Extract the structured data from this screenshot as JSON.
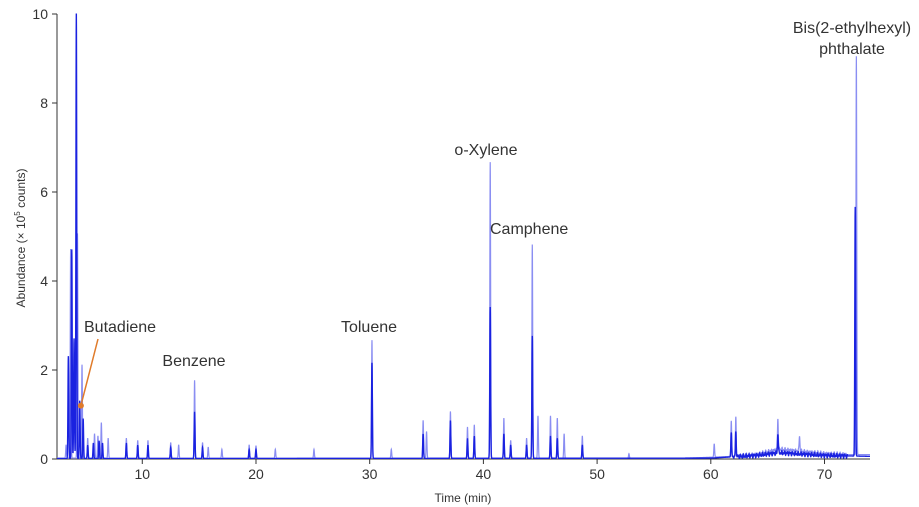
{
  "chart_data": {
    "type": "line",
    "xlabel": "Time (min)",
    "ylabel": "Abundance (× 10",
    "ylabel_sup": "5",
    "ylabel_suffix": " counts)",
    "xlim": [
      2.5,
      74
    ],
    "ylim": [
      0,
      10
    ],
    "x_ticks": [
      10,
      20,
      30,
      40,
      50,
      60,
      70
    ],
    "y_ticks": [
      0,
      2,
      4,
      6,
      8,
      10
    ],
    "grid": false,
    "legend": "none",
    "colors": {
      "dark": "#1a22e0",
      "light": "#8a8ef2",
      "annotation": "#e07b2a",
      "axis": "#333333"
    },
    "series": [
      {
        "color_key": "light",
        "peaks": [
          [
            3.3,
            0.3
          ],
          [
            3.7,
            4.7
          ],
          [
            4.3,
            5.05
          ],
          [
            4.7,
            2.1
          ],
          [
            5.2,
            0.45
          ],
          [
            5.8,
            0.55
          ],
          [
            6.1,
            0.5
          ],
          [
            6.4,
            0.8
          ],
          [
            7.0,
            0.45
          ],
          [
            8.6,
            0.45
          ],
          [
            9.6,
            0.4
          ],
          [
            10.5,
            0.4
          ],
          [
            12.5,
            0.35
          ],
          [
            13.2,
            0.3
          ],
          [
            14.6,
            1.75
          ],
          [
            15.3,
            0.35
          ],
          [
            15.8,
            0.25
          ],
          [
            17.0,
            0.2
          ],
          [
            19.4,
            0.3
          ],
          [
            20.0,
            0.28
          ],
          [
            21.7,
            0.2
          ],
          [
            25.1,
            0.2
          ],
          [
            30.2,
            2.65
          ],
          [
            31.9,
            0.2
          ],
          [
            34.7,
            0.85
          ],
          [
            35.0,
            0.6
          ],
          [
            37.1,
            1.05
          ],
          [
            38.6,
            0.7
          ],
          [
            39.2,
            0.75
          ],
          [
            40.6,
            6.65
          ],
          [
            41.8,
            0.9
          ],
          [
            42.4,
            0.4
          ],
          [
            43.8,
            0.45
          ],
          [
            44.3,
            4.8
          ],
          [
            44.8,
            0.95
          ],
          [
            45.9,
            0.95
          ],
          [
            46.5,
            0.9
          ],
          [
            47.1,
            0.55
          ],
          [
            48.7,
            0.5
          ],
          [
            52.8,
            0.1
          ],
          [
            60.3,
            0.3
          ],
          [
            61.8,
            0.8
          ],
          [
            62.2,
            0.85
          ],
          [
            65.9,
            0.7
          ],
          [
            67.8,
            0.35
          ],
          [
            72.8,
            8.95
          ]
        ],
        "baseline": [
          [
            2.5,
            0.02
          ],
          [
            20,
            0.02
          ],
          [
            58,
            0.02
          ],
          [
            62,
            0.06
          ],
          [
            64,
            0.1
          ],
          [
            66,
            0.22
          ],
          [
            68,
            0.17
          ],
          [
            70,
            0.12
          ],
          [
            72,
            0.1
          ],
          [
            74,
            0.1
          ]
        ]
      },
      {
        "color_key": "dark",
        "peaks": [
          [
            3.5,
            2.3
          ],
          [
            3.8,
            4.7
          ],
          [
            4.0,
            2.7
          ],
          [
            4.2,
            10.0
          ],
          [
            4.5,
            1.3
          ],
          [
            4.8,
            0.9
          ],
          [
            5.2,
            0.3
          ],
          [
            5.7,
            0.35
          ],
          [
            6.2,
            0.4
          ],
          [
            6.5,
            0.35
          ],
          [
            8.6,
            0.35
          ],
          [
            9.6,
            0.3
          ],
          [
            10.5,
            0.3
          ],
          [
            12.5,
            0.25
          ],
          [
            14.6,
            1.05
          ],
          [
            15.3,
            0.25
          ],
          [
            19.4,
            0.2
          ],
          [
            20.0,
            0.2
          ],
          [
            30.2,
            2.15
          ],
          [
            34.7,
            0.55
          ],
          [
            37.1,
            0.85
          ],
          [
            38.6,
            0.45
          ],
          [
            39.2,
            0.5
          ],
          [
            40.6,
            3.4
          ],
          [
            41.8,
            0.55
          ],
          [
            42.4,
            0.3
          ],
          [
            43.8,
            0.3
          ],
          [
            44.3,
            2.75
          ],
          [
            45.9,
            0.5
          ],
          [
            46.5,
            0.45
          ],
          [
            48.7,
            0.3
          ],
          [
            61.8,
            0.55
          ],
          [
            62.2,
            0.55
          ],
          [
            65.9,
            0.45
          ],
          [
            72.7,
            5.6
          ]
        ],
        "baseline": [
          [
            2.5,
            0.01
          ],
          [
            20,
            0.01
          ],
          [
            60,
            0.02
          ],
          [
            62,
            0.05
          ],
          [
            64,
            0.08
          ],
          [
            66,
            0.14
          ],
          [
            68,
            0.11
          ],
          [
            70,
            0.08
          ],
          [
            72,
            0.07
          ],
          [
            74,
            0.06
          ]
        ]
      }
    ],
    "annotations": [
      {
        "text": "Butadiene",
        "x": 4.6,
        "y": 1.2,
        "marker": true
      },
      {
        "text": "Benzene",
        "x": 14.6,
        "y": 1.75
      },
      {
        "text": "Toluene",
        "x": 30.2,
        "y": 2.65
      },
      {
        "text": "o-Xylene",
        "x": 40.6,
        "y": 6.65
      },
      {
        "text": "Camphene",
        "x": 44.3,
        "y": 4.8
      },
      {
        "text": "Bis(2-ethylhexyl)",
        "text2": "phthalate",
        "x": 72.8,
        "y": 8.95
      }
    ]
  }
}
